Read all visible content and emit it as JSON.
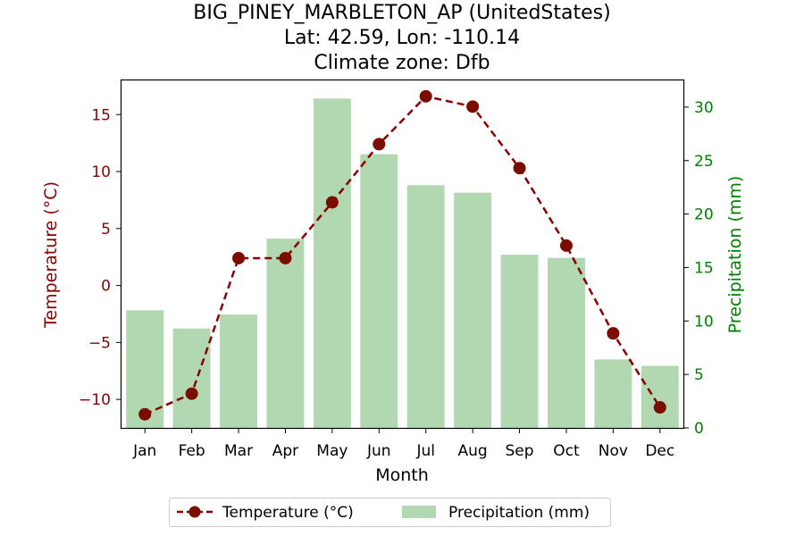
{
  "chart_data": {
    "type": "bar+line",
    "title_lines": [
      "BIG_PINEY_MARBLETON_AP (UnitedStates)",
      "Lat: 42.59, Lon: -110.14",
      "Climate zone: Dfb"
    ],
    "xlabel": "Month",
    "ylabel_left": "Temperature (°C)",
    "ylabel_right": "Precipitation (mm)",
    "categories": [
      "Jan",
      "Feb",
      "Mar",
      "Apr",
      "May",
      "Jun",
      "Jul",
      "Aug",
      "Sep",
      "Oct",
      "Nov",
      "Dec"
    ],
    "series": [
      {
        "name": "Temperature (°C)",
        "axis": "left",
        "kind": "line",
        "style": "dashed, circle markers",
        "values": [
          -11.3,
          -9.5,
          2.4,
          2.4,
          7.3,
          12.4,
          16.6,
          15.7,
          10.3,
          3.5,
          -4.2,
          -10.7
        ]
      },
      {
        "name": "Precipitation (mm)",
        "axis": "right",
        "kind": "bar",
        "values": [
          11.0,
          9.3,
          10.6,
          17.7,
          30.8,
          25.6,
          22.7,
          22.0,
          16.2,
          15.9,
          6.4,
          5.8
        ]
      }
    ],
    "left_axis": {
      "ylim": [
        -12.5,
        18.0
      ],
      "ticks": [
        -10,
        -5,
        0,
        5,
        10,
        15
      ],
      "tick_labels": [
        "−10",
        "−5",
        "0",
        "5",
        "10",
        "15"
      ]
    },
    "right_axis": {
      "ylim": [
        0,
        32.5
      ],
      "ticks": [
        0,
        5,
        10,
        15,
        20,
        25,
        30
      ],
      "tick_labels": [
        "0",
        "5",
        "10",
        "15",
        "20",
        "25",
        "30"
      ]
    },
    "grid": false,
    "legend": {
      "placement": "bottom-center",
      "entries": [
        "Temperature (°C)",
        "Precipitation (mm)"
      ]
    },
    "colors": {
      "temperature": "#8b0000",
      "temperature_marker": "#7a0c00",
      "precipitation": "#b2d8b2",
      "left_axis_text": "#8b0000",
      "right_axis_text": "#008000",
      "text": "#000000"
    }
  }
}
